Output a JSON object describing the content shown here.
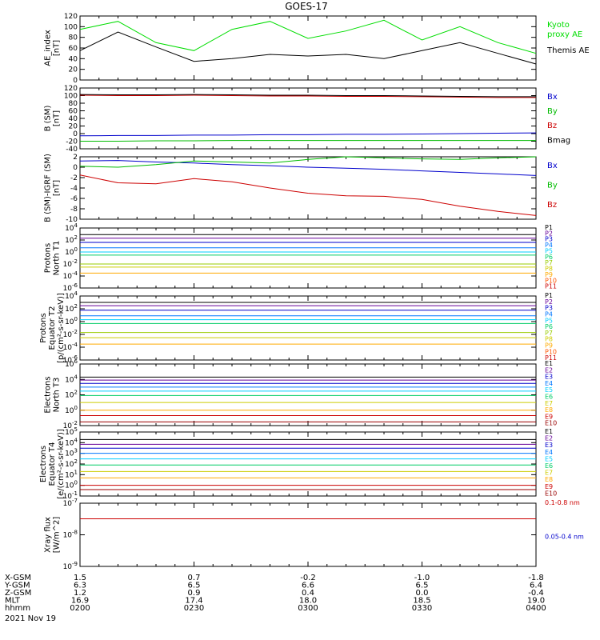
{
  "title": "GOES-17",
  "date": "2021 Nov 19",
  "ephemeris": {
    "labels": [
      "X-GSM",
      "Y-GSM",
      "Z-GSM",
      "MLT",
      "hhmm"
    ],
    "columns": [
      [
        "1.5",
        "6.3",
        "1.2",
        "16.9",
        "0200"
      ],
      [
        "0.7",
        "6.5",
        "0.9",
        "17.4",
        "0230"
      ],
      [
        "-0.2",
        "6.6",
        "0.4",
        "18.0",
        "0300"
      ],
      [
        "-1.0",
        "6.5",
        "0.0",
        "18.5",
        "0330"
      ],
      [
        "-1.8",
        "6.4",
        "-0.4",
        "19.0",
        "0400"
      ]
    ]
  },
  "chart_data": [
    {
      "id": "ae",
      "type": "line",
      "ylabel": "AE_index\n[nT]",
      "ylim": [
        0,
        120
      ],
      "yticks": [
        "0",
        "20",
        "40",
        "60",
        "80",
        "100",
        "120"
      ],
      "x": [
        "02:00",
        "02:10",
        "02:20",
        "02:30",
        "02:40",
        "02:50",
        "03:00",
        "03:10",
        "03:20",
        "03:30",
        "03:40",
        "03:50",
        "04:00"
      ],
      "series": [
        {
          "name": "Kyoto\nproxy AE",
          "color": "#00dd00",
          "values": [
            95,
            110,
            70,
            55,
            95,
            110,
            78,
            92,
            112,
            75,
            100,
            70,
            50
          ]
        },
        {
          "name": "Themis AE",
          "color": "#000000",
          "values": [
            55,
            90,
            62,
            35,
            40,
            48,
            45,
            48,
            40,
            55,
            70,
            50,
            30
          ]
        }
      ]
    },
    {
      "id": "bsm",
      "type": "line",
      "ylabel": "B (SM)\n[nT]",
      "ylim": [
        -40,
        120
      ],
      "yticks": [
        "-40",
        "-20",
        "0",
        "20",
        "40",
        "60",
        "80",
        "100",
        "120"
      ],
      "series": [
        {
          "name": "Bx",
          "color": "#0000cc",
          "values": [
            -6,
            -5,
            -5,
            -4,
            -4,
            -3,
            -3,
            -2,
            -2,
            -1,
            0,
            1,
            2
          ]
        },
        {
          "name": "By",
          "color": "#00bb00",
          "values": [
            -20,
            -20,
            -19,
            -19,
            -18,
            -18,
            -18,
            -18,
            -18,
            -18,
            -18,
            -18,
            -18
          ]
        },
        {
          "name": "Bz",
          "color": "#cc0000",
          "values": [
            101,
            100,
            100,
            101,
            100,
            99,
            99,
            98,
            98,
            97,
            96,
            95,
            95
          ]
        },
        {
          "name": "Bmag",
          "color": "#000000",
          "values": [
            103,
            102,
            102,
            103,
            102,
            101,
            101,
            100,
            100,
            99,
            98,
            97,
            97
          ]
        }
      ]
    },
    {
      "id": "bsmigrf",
      "type": "line",
      "ylabel": "B (SM)-IGRF (SM)\n[nT]",
      "ylim": [
        -10,
        2
      ],
      "yticks": [
        "-10",
        "-8",
        "-6",
        "-4",
        "-2",
        "0",
        "2"
      ],
      "series": [
        {
          "name": "Bx",
          "color": "#0000cc",
          "values": [
            1.2,
            1.3,
            1.0,
            0.8,
            0.5,
            0.3,
            0.0,
            -0.2,
            -0.4,
            -0.7,
            -1.0,
            -1.3,
            -1.6
          ]
        },
        {
          "name": "By",
          "color": "#00bb00",
          "values": [
            0.2,
            0.0,
            0.5,
            1.2,
            1.0,
            0.8,
            1.5,
            2.0,
            1.8,
            1.6,
            1.5,
            1.8,
            2.0
          ]
        },
        {
          "name": "Bz",
          "color": "#cc0000",
          "values": [
            -1.5,
            -3.0,
            -3.2,
            -2.2,
            -2.8,
            -4.0,
            -5.0,
            -5.5,
            -5.6,
            -6.2,
            -7.5,
            -8.5,
            -9.3
          ]
        }
      ]
    },
    {
      "id": "protons_t1",
      "type": "line",
      "ylabel": "Protons\nNorth T1",
      "log": true,
      "ylim": [
        1e-06,
        10000.0
      ],
      "yticks": [
        "10^-6",
        "10^-4",
        "10^-2",
        "10^0",
        "10^2",
        "10^4"
      ],
      "series": [
        {
          "name": "P1",
          "color": "#000000",
          "value": 800
        },
        {
          "name": "P2",
          "color": "#660099",
          "value": 200
        },
        {
          "name": "P3",
          "color": "#0000cc",
          "value": 40
        },
        {
          "name": "P4",
          "color": "#0077ff",
          "value": 5
        },
        {
          "name": "P5",
          "color": "#00ccff",
          "value": 1
        },
        {
          "name": "P6",
          "color": "#00cc66",
          "value": 0.3
        },
        {
          "name": "P7",
          "color": "#99cc00",
          "value": 0.01
        },
        {
          "name": "P8",
          "color": "#cccc00",
          "value": 0.003
        },
        {
          "name": "P9",
          "color": "#ffaa00",
          "value": 0.0003
        },
        {
          "name": "P10",
          "color": "#ff5500",
          "value": null
        },
        {
          "name": "P11",
          "color": "#cc0000",
          "value": null
        }
      ]
    },
    {
      "id": "protons_t2",
      "type": "line",
      "ylabel": "Protons\nEquator T2\n[p/(cm²-s-sr-keV)]",
      "log": true,
      "ylim": [
        1e-06,
        10000.0
      ],
      "yticks": [
        "10^-6",
        "10^-4",
        "10^-2",
        "10^0",
        "10^2",
        "10^4"
      ],
      "series": [
        {
          "name": "P1",
          "color": "#000000",
          "value": 1000
        },
        {
          "name": "P2",
          "color": "#660099",
          "value": 300
        },
        {
          "name": "P3",
          "color": "#0000cc",
          "value": 60
        },
        {
          "name": "P4",
          "color": "#0077ff",
          "value": 8
        },
        {
          "name": "P5",
          "color": "#00ccff",
          "value": 2
        },
        {
          "name": "P6",
          "color": "#00cc66",
          "value": 0.5
        },
        {
          "name": "P7",
          "color": "#99cc00",
          "value": 0.02
        },
        {
          "name": "P8",
          "color": "#cccc00",
          "value": 0.003
        },
        {
          "name": "P9",
          "color": "#ffaa00",
          "value": 0.0003
        },
        {
          "name": "P10",
          "color": "#ff5500",
          "value": null
        },
        {
          "name": "P11",
          "color": "#cc0000",
          "value": null
        }
      ]
    },
    {
      "id": "electrons_t3",
      "type": "line",
      "ylabel": "Electrons\nNorth T3",
      "log": true,
      "ylim": [
        0.01,
        1000000.0
      ],
      "yticks": [
        "10^-2",
        "10^0",
        "10^2",
        "10^4",
        "10^6"
      ],
      "series": [
        {
          "name": "E1",
          "color": "#000000",
          "value": 20000
        },
        {
          "name": "E2",
          "color": "#660099",
          "value": 8000
        },
        {
          "name": "E3",
          "color": "#0000cc",
          "value": 3000
        },
        {
          "name": "E4",
          "color": "#0077ff",
          "value": 1000
        },
        {
          "name": "E5",
          "color": "#00ccff",
          "value": 300
        },
        {
          "name": "E6",
          "color": "#00cc66",
          "value": 80
        },
        {
          "name": "E7",
          "color": "#cccc00",
          "value": 10
        },
        {
          "name": "E8",
          "color": "#ffaa00",
          "value": 1
        },
        {
          "name": "E9",
          "color": "#cc0000",
          "value": 0.2
        },
        {
          "name": "E10",
          "color": "#990000",
          "value": 0.03
        }
      ]
    },
    {
      "id": "electrons_t4",
      "type": "line",
      "ylabel": "Electrons\nEquator T4\n[e/(cm²-s-sr-keV)]",
      "log": true,
      "ylim": [
        0.1,
        100000.0
      ],
      "yticks": [
        "10^-1",
        "10^0",
        "10^1",
        "10^2",
        "10^3",
        "10^4",
        "10^5"
      ],
      "series": [
        {
          "name": "E1",
          "color": "#000000",
          "value": 20000
        },
        {
          "name": "E2",
          "color": "#660099",
          "value": 7000
        },
        {
          "name": "E3",
          "color": "#0000cc",
          "value": 3000
        },
        {
          "name": "E4",
          "color": "#0077ff",
          "value": 1000
        },
        {
          "name": "E5",
          "color": "#00ccff",
          "value": 300
        },
        {
          "name": "E6",
          "color": "#00cc66",
          "value": 80
        },
        {
          "name": "E7",
          "color": "#cccc00",
          "value": 20
        },
        {
          "name": "E8",
          "color": "#ffaa00",
          "value": 5
        },
        {
          "name": "E9",
          "color": "#cc0000",
          "value": 1
        },
        {
          "name": "E10",
          "color": "#990000",
          "value": 0.4
        }
      ]
    },
    {
      "id": "xray",
      "type": "line",
      "ylabel": "Xray flux\n[W/m^2]",
      "log": true,
      "ylim": [
        1e-09,
        1e-07
      ],
      "yticks": [
        "10^-9",
        "10^-8",
        "10^-7"
      ],
      "series": [
        {
          "name": "0.1-0.8 nm",
          "color": "#cc0000",
          "value": 3.2e-08
        },
        {
          "name": "0.05-0.4 nm",
          "color": "#0000cc",
          "value": null
        }
      ]
    }
  ]
}
